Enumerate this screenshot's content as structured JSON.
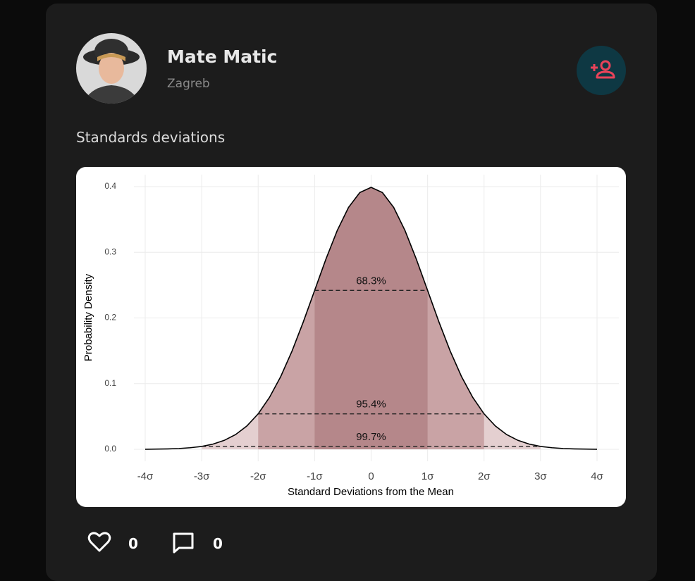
{
  "header": {
    "name": "Mate Matic",
    "location": "Zagreb"
  },
  "post": {
    "text": "Standards deviations"
  },
  "chart_data": {
    "type": "line",
    "x_label": "Standard Deviations from the Mean",
    "y_label": "Probability Density",
    "x": [
      -4,
      -3.8,
      -3.6,
      -3.4,
      -3.2,
      -3,
      -2.8,
      -2.6,
      -2.4,
      -2.2,
      -2,
      -1.8,
      -1.6,
      -1.4,
      -1.2,
      -1,
      -0.8,
      -0.6,
      -0.4,
      -0.2,
      0,
      0.2,
      0.4,
      0.6,
      0.8,
      1,
      1.2,
      1.4,
      1.6,
      1.8,
      2,
      2.2,
      2.4,
      2.6,
      2.8,
      3,
      3.2,
      3.4,
      3.6,
      3.8,
      4
    ],
    "values": [
      0.0001,
      0.0003,
      0.0006,
      0.0012,
      0.0024,
      0.0044,
      0.0079,
      0.0136,
      0.0224,
      0.0355,
      0.054,
      0.079,
      0.1109,
      0.1497,
      0.1942,
      0.242,
      0.2897,
      0.3332,
      0.3683,
      0.391,
      0.3989,
      0.391,
      0.3683,
      0.3332,
      0.2897,
      0.242,
      0.1942,
      0.1497,
      0.1109,
      0.079,
      0.054,
      0.0355,
      0.0224,
      0.0136,
      0.0079,
      0.0044,
      0.0024,
      0.0012,
      0.0006,
      0.0003,
      0.0001
    ],
    "color": "#000000",
    "intervals": [
      {
        "label": "99.7%",
        "lo": -3,
        "hi": 3,
        "height": 0.0044,
        "color": "#e4cfd0"
      },
      {
        "label": "95.4%",
        "lo": -2,
        "hi": 2,
        "height": 0.054,
        "color": "#c9a3a5"
      },
      {
        "label": "68.3%",
        "lo": -1,
        "hi": 1,
        "height": 0.242,
        "color": "#b5878a"
      }
    ],
    "xlim": [
      -4,
      4
    ],
    "ylim": [
      0,
      0.4
    ],
    "xticks": [
      {
        "value": -4,
        "label": "-4σ"
      },
      {
        "value": -3,
        "label": "-3σ"
      },
      {
        "value": -2,
        "label": "-2σ"
      },
      {
        "value": -1,
        "label": "-1σ"
      },
      0,
      {
        "value": 1,
        "label": "1σ"
      },
      {
        "value": 2,
        "label": "2σ"
      },
      {
        "value": 3,
        "label": "3σ"
      },
      {
        "value": 4,
        "label": "4σ"
      }
    ],
    "yticks": [
      {
        "value": 0,
        "label": "0.0"
      },
      0.1,
      0.2,
      0.3,
      0.4
    ],
    "grid": true
  },
  "footer": {
    "likes": 0,
    "comments": 0
  }
}
